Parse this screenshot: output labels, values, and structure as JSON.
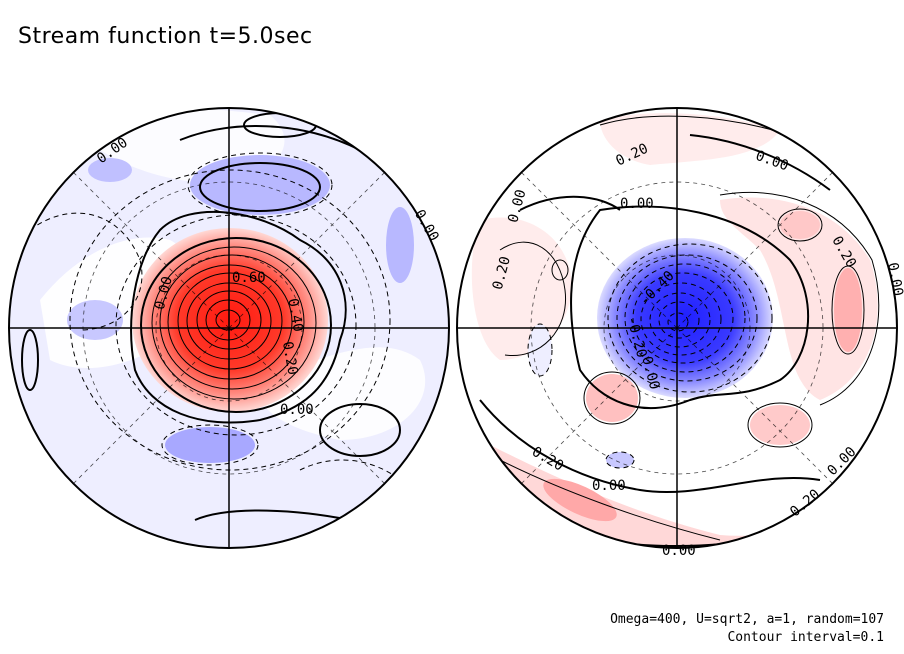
{
  "title": "Stream function t=5.0sec",
  "footer": {
    "params": "Omega=400, U=sqrt2, a=1, random=107",
    "contour": "Contour interval=0.1"
  },
  "colors": {
    "positive": "#ff2a1a",
    "negative": "#2a2aff",
    "background": "#ffffff",
    "line": "#000000"
  },
  "left_hemisphere": {
    "labels": [
      "0.00",
      "0.00",
      "0.00",
      "0.60",
      "0.40",
      "0.20",
      "0.00"
    ]
  },
  "right_hemisphere": {
    "labels": [
      "0.20",
      "0.00",
      "0.00",
      "0.00",
      "0.20",
      "0.20",
      "0.00",
      "-0.40",
      "-0.20",
      "0.00",
      "0.20",
      "0.00",
      "0.00",
      "0.20",
      "0.00"
    ]
  }
}
